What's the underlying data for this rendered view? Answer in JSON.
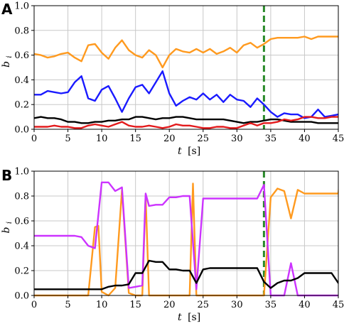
{
  "chart_data": [
    {
      "panel": "A",
      "type": "line",
      "xlabel": "t",
      "xunit": "[s]",
      "ylabel": "b",
      "ylabel_sub": "i",
      "xlim": [
        0,
        45
      ],
      "ylim": [
        0,
        1.0
      ],
      "xticks": [
        0,
        5,
        10,
        15,
        20,
        25,
        30,
        35,
        40,
        45
      ],
      "yticks": [
        0.0,
        0.2,
        0.4,
        0.6,
        0.8,
        1.0
      ],
      "ytick_labels": [
        "0.0",
        "0.2",
        "0.4",
        "0.6",
        "0.8",
        "1.0"
      ],
      "grid": true,
      "vline": {
        "x": 34,
        "color": "#2a8a2a",
        "style": "dashed"
      },
      "series": [
        {
          "color": "#ff9a1f",
          "points": [
            [
              0,
              0.61
            ],
            [
              1,
              0.6
            ],
            [
              2,
              0.58
            ],
            [
              3,
              0.59
            ],
            [
              4,
              0.61
            ],
            [
              5,
              0.62
            ],
            [
              6,
              0.58
            ],
            [
              7,
              0.55
            ],
            [
              8,
              0.68
            ],
            [
              9,
              0.69
            ],
            [
              10,
              0.62
            ],
            [
              11,
              0.57
            ],
            [
              12,
              0.66
            ],
            [
              13,
              0.72
            ],
            [
              14,
              0.64
            ],
            [
              15,
              0.6
            ],
            [
              16,
              0.58
            ],
            [
              17,
              0.64
            ],
            [
              18,
              0.6
            ],
            [
              19,
              0.5
            ],
            [
              20,
              0.6
            ],
            [
              21,
              0.65
            ],
            [
              22,
              0.63
            ],
            [
              23,
              0.62
            ],
            [
              24,
              0.65
            ],
            [
              25,
              0.62
            ],
            [
              26,
              0.65
            ],
            [
              27,
              0.61
            ],
            [
              28,
              0.63
            ],
            [
              29,
              0.66
            ],
            [
              30,
              0.62
            ],
            [
              31,
              0.68
            ],
            [
              32,
              0.7
            ],
            [
              33,
              0.66
            ],
            [
              34,
              0.69
            ],
            [
              35,
              0.73
            ],
            [
              36,
              0.74
            ],
            [
              37,
              0.74
            ],
            [
              38,
              0.74
            ],
            [
              39,
              0.74
            ],
            [
              40,
              0.75
            ],
            [
              41,
              0.73
            ],
            [
              42,
              0.75
            ],
            [
              43,
              0.75
            ],
            [
              44,
              0.75
            ],
            [
              45,
              0.75
            ]
          ]
        },
        {
          "color": "#1a1aff",
          "points": [
            [
              0,
              0.28
            ],
            [
              1,
              0.28
            ],
            [
              2,
              0.31
            ],
            [
              3,
              0.3
            ],
            [
              4,
              0.29
            ],
            [
              5,
              0.3
            ],
            [
              6,
              0.38
            ],
            [
              7,
              0.43
            ],
            [
              8,
              0.25
            ],
            [
              9,
              0.23
            ],
            [
              10,
              0.32
            ],
            [
              11,
              0.35
            ],
            [
              12,
              0.25
            ],
            [
              13,
              0.14
            ],
            [
              14,
              0.25
            ],
            [
              15,
              0.34
            ],
            [
              16,
              0.36
            ],
            [
              17,
              0.29
            ],
            [
              18,
              0.38
            ],
            [
              19,
              0.47
            ],
            [
              20,
              0.29
            ],
            [
              21,
              0.19
            ],
            [
              22,
              0.23
            ],
            [
              23,
              0.26
            ],
            [
              24,
              0.24
            ],
            [
              25,
              0.29
            ],
            [
              26,
              0.24
            ],
            [
              27,
              0.28
            ],
            [
              28,
              0.22
            ],
            [
              29,
              0.28
            ],
            [
              30,
              0.24
            ],
            [
              31,
              0.23
            ],
            [
              32,
              0.18
            ],
            [
              33,
              0.25
            ],
            [
              34,
              0.2
            ],
            [
              35,
              0.14
            ],
            [
              36,
              0.1
            ],
            [
              37,
              0.13
            ],
            [
              38,
              0.12
            ],
            [
              39,
              0.12
            ],
            [
              40,
              0.09
            ],
            [
              41,
              0.1
            ],
            [
              42,
              0.16
            ],
            [
              43,
              0.1
            ],
            [
              44,
              0.11
            ],
            [
              45,
              0.12
            ]
          ]
        },
        {
          "color": "#000000",
          "points": [
            [
              0,
              0.09
            ],
            [
              1,
              0.1
            ],
            [
              2,
              0.09
            ],
            [
              3,
              0.09
            ],
            [
              4,
              0.08
            ],
            [
              5,
              0.06
            ],
            [
              6,
              0.06
            ],
            [
              7,
              0.05
            ],
            [
              8,
              0.05
            ],
            [
              9,
              0.06
            ],
            [
              10,
              0.06
            ],
            [
              11,
              0.07
            ],
            [
              12,
              0.07
            ],
            [
              13,
              0.08
            ],
            [
              14,
              0.08
            ],
            [
              15,
              0.1
            ],
            [
              16,
              0.1
            ],
            [
              17,
              0.09
            ],
            [
              18,
              0.08
            ],
            [
              19,
              0.09
            ],
            [
              20,
              0.09
            ],
            [
              21,
              0.1
            ],
            [
              22,
              0.1
            ],
            [
              23,
              0.09
            ],
            [
              24,
              0.08
            ],
            [
              25,
              0.08
            ],
            [
              26,
              0.08
            ],
            [
              27,
              0.08
            ],
            [
              28,
              0.08
            ],
            [
              29,
              0.07
            ],
            [
              30,
              0.06
            ],
            [
              31,
              0.05
            ],
            [
              32,
              0.06
            ],
            [
              33,
              0.06
            ],
            [
              34,
              0.07
            ],
            [
              35,
              0.08
            ],
            [
              36,
              0.08
            ],
            [
              37,
              0.07
            ],
            [
              38,
              0.06
            ],
            [
              39,
              0.06
            ],
            [
              40,
              0.06
            ],
            [
              41,
              0.06
            ],
            [
              42,
              0.05
            ],
            [
              43,
              0.05
            ],
            [
              44,
              0.05
            ],
            [
              45,
              0.05
            ]
          ]
        },
        {
          "color": "#e31a1c",
          "points": [
            [
              0,
              0.02
            ],
            [
              1,
              0.02
            ],
            [
              2,
              0.02
            ],
            [
              3,
              0.03
            ],
            [
              4,
              0.02
            ],
            [
              5,
              0.02
            ],
            [
              6,
              0.01
            ],
            [
              7,
              0.01
            ],
            [
              8,
              0.03
            ],
            [
              9,
              0.04
            ],
            [
              10,
              0.03
            ],
            [
              11,
              0.02
            ],
            [
              12,
              0.04
            ],
            [
              13,
              0.06
            ],
            [
              14,
              0.03
            ],
            [
              15,
              0.02
            ],
            [
              16,
              0.02
            ],
            [
              17,
              0.03
            ],
            [
              18,
              0.02
            ],
            [
              19,
              0.01
            ],
            [
              20,
              0.02
            ],
            [
              21,
              0.04
            ],
            [
              22,
              0.03
            ],
            [
              23,
              0.03
            ],
            [
              24,
              0.02
            ],
            [
              25,
              0.01
            ],
            [
              26,
              0.01
            ],
            [
              27,
              0.02
            ],
            [
              28,
              0.02
            ],
            [
              29,
              0.01
            ],
            [
              30,
              0.01
            ],
            [
              31,
              0.03
            ],
            [
              32,
              0.05
            ],
            [
              33,
              0.03
            ],
            [
              34,
              0.05
            ],
            [
              35,
              0.05
            ],
            [
              36,
              0.06
            ],
            [
              37,
              0.08
            ],
            [
              38,
              0.07
            ],
            [
              39,
              0.08
            ],
            [
              40,
              0.1
            ],
            [
              41,
              0.1
            ],
            [
              42,
              0.09
            ],
            [
              43,
              0.09
            ],
            [
              44,
              0.1
            ],
            [
              45,
              0.1
            ]
          ]
        }
      ]
    },
    {
      "panel": "B",
      "type": "line",
      "xlabel": "t",
      "xunit": "[s]",
      "ylabel": "b",
      "ylabel_sub": "i",
      "xlim": [
        0,
        45
      ],
      "ylim": [
        0,
        1.0
      ],
      "xticks": [
        0,
        5,
        10,
        15,
        20,
        25,
        30,
        35,
        40,
        45
      ],
      "yticks": [
        0.0,
        0.2,
        0.4,
        0.6,
        0.8,
        1.0
      ],
      "ytick_labels": [
        "0.0",
        "0.2",
        "0.4",
        "0.6",
        "0.8",
        "1.0"
      ],
      "grid": true,
      "vline": {
        "x": 34,
        "color": "#2a8a2a",
        "style": "dashed"
      },
      "series": [
        {
          "color": "#ff9a1f",
          "points": [
            [
              0,
              0.0
            ],
            [
              8,
              0.0
            ],
            [
              9,
              0.55
            ],
            [
              9.5,
              0.56
            ],
            [
              10,
              0.03
            ],
            [
              11,
              0.0
            ],
            [
              12,
              0.06
            ],
            [
              13,
              0.85
            ],
            [
              14,
              0.02
            ],
            [
              15,
              0.0
            ],
            [
              16,
              0.0
            ],
            [
              16.5,
              0.8
            ],
            [
              17,
              0.0
            ],
            [
              23,
              0.0
            ],
            [
              23.5,
              0.9
            ],
            [
              24,
              0.0
            ],
            [
              34,
              0.0
            ],
            [
              35,
              0.79
            ],
            [
              36,
              0.86
            ],
            [
              37,
              0.84
            ],
            [
              38,
              0.62
            ],
            [
              39,
              0.85
            ],
            [
              40,
              0.82
            ],
            [
              45,
              0.82
            ],
            [
              45.2,
              0.92
            ]
          ]
        },
        {
          "color": "#cc33ff",
          "points": [
            [
              0,
              0.48
            ],
            [
              6,
              0.48
            ],
            [
              7,
              0.47
            ],
            [
              8,
              0.4
            ],
            [
              9,
              0.38
            ],
            [
              10,
              0.91
            ],
            [
              11,
              0.91
            ],
            [
              12,
              0.84
            ],
            [
              13,
              0.87
            ],
            [
              14,
              0.06
            ],
            [
              15,
              0.07
            ],
            [
              16,
              0.08
            ],
            [
              16.5,
              0.82
            ],
            [
              17,
              0.72
            ],
            [
              18,
              0.73
            ],
            [
              19,
              0.73
            ],
            [
              20,
              0.79
            ],
            [
              21,
              0.79
            ],
            [
              22,
              0.8
            ],
            [
              23,
              0.8
            ],
            [
              24,
              0.05
            ],
            [
              25,
              0.78
            ],
            [
              33,
              0.78
            ],
            [
              34,
              0.89
            ],
            [
              35,
              0.0
            ],
            [
              37,
              0.0
            ],
            [
              38,
              0.26
            ],
            [
              39,
              0.0
            ],
            [
              45,
              0.0
            ]
          ]
        },
        {
          "color": "#000000",
          "points": [
            [
              0,
              0.05
            ],
            [
              10,
              0.05
            ],
            [
              11,
              0.07
            ],
            [
              12,
              0.08
            ],
            [
              13,
              0.08
            ],
            [
              14,
              0.09
            ],
            [
              15,
              0.18
            ],
            [
              16,
              0.18
            ],
            [
              17,
              0.28
            ],
            [
              18,
              0.27
            ],
            [
              19,
              0.27
            ],
            [
              20,
              0.21
            ],
            [
              21,
              0.21
            ],
            [
              22,
              0.2
            ],
            [
              23,
              0.2
            ],
            [
              24,
              0.1
            ],
            [
              25,
              0.21
            ],
            [
              26,
              0.22
            ],
            [
              33,
              0.22
            ],
            [
              34,
              0.11
            ],
            [
              35,
              0.06
            ],
            [
              36,
              0.1
            ],
            [
              37,
              0.12
            ],
            [
              38,
              0.12
            ],
            [
              39,
              0.14
            ],
            [
              40,
              0.18
            ],
            [
              44,
              0.18
            ],
            [
              45,
              0.1
            ]
          ]
        }
      ]
    }
  ]
}
